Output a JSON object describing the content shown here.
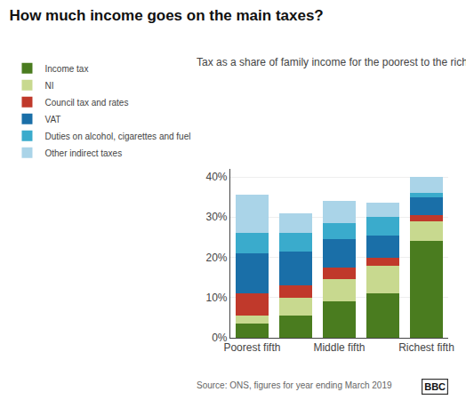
{
  "chart_data": {
    "type": "bar",
    "title": "How much income goes on the main taxes?",
    "subtitle": "Tax as a share of family income for the poorest to the richest",
    "annotations": [
      "Source: ONS, figures for year ending March 2019",
      "BBC"
    ],
    "categories": [
      "Poorest fifth",
      null,
      "Middle fifth",
      null,
      "Richest fifth"
    ],
    "series": [
      {
        "name": "Income tax",
        "color": "#4a7c1f",
        "values": [
          3.5,
          5.5,
          9.0,
          11.0,
          24.0
        ]
      },
      {
        "name": "NI",
        "color": "#c8d98f",
        "values": [
          2.0,
          4.5,
          5.5,
          7.0,
          5.0
        ]
      },
      {
        "name": "Council tax and rates",
        "color": "#c0392b",
        "values": [
          5.5,
          3.0,
          3.0,
          2.0,
          1.5
        ]
      },
      {
        "name": "VAT",
        "color": "#1a6fa8",
        "values": [
          10.0,
          8.5,
          7.0,
          5.5,
          4.5
        ]
      },
      {
        "name": "Duties on alcohol, cigarettes and fuel",
        "color": "#3aabcc",
        "values": [
          5.0,
          4.5,
          4.0,
          4.5,
          1.0
        ]
      },
      {
        "name": "Other indirect taxes",
        "color": "#aad4e8",
        "values": [
          9.5,
          5.0,
          5.5,
          3.5,
          4.0
        ]
      }
    ],
    "stacked": true,
    "ylim": [
      0,
      42
    ],
    "yticks": [
      {
        "value": 0,
        "label": "0%"
      },
      {
        "value": 10,
        "label": "10%"
      },
      {
        "value": 20,
        "label": "20%"
      },
      {
        "value": 30,
        "label": "30%"
      },
      {
        "value": 40,
        "label": "40%"
      }
    ],
    "grid": true,
    "legend": "top"
  }
}
